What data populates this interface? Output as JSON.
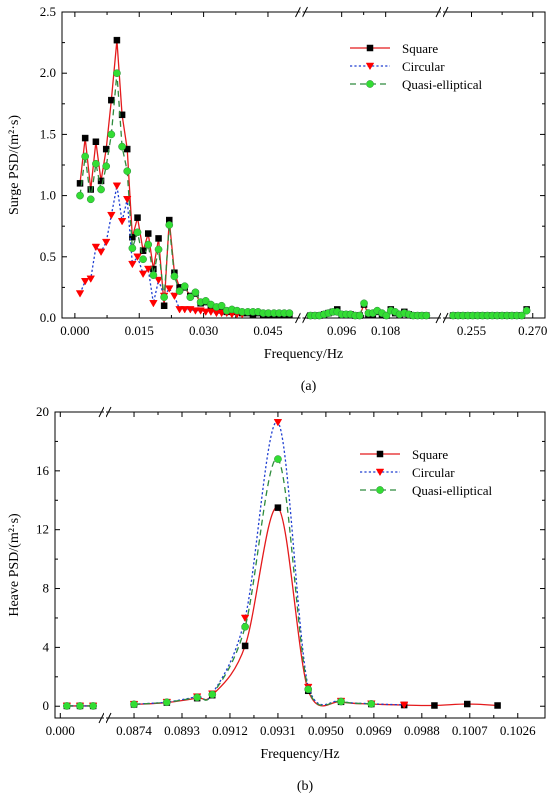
{
  "chart_data": [
    {
      "type": "line",
      "panel_label": "(a)",
      "xlabel": "Frequency/Hz",
      "ylabel": "Surge PSD/(m²·s)",
      "ylim": [
        0,
        2.5
      ],
      "yticks": [
        0.0,
        0.5,
        1.0,
        1.5,
        2.0,
        2.5
      ],
      "ytick_labels": [
        "0.0",
        "0.5",
        "1.0",
        "1.5",
        "2.0",
        "2.5"
      ],
      "axis_break": true,
      "x_segments": [
        {
          "range": [
            -0.003,
            0.052
          ],
          "ticks": [
            0.0,
            0.015,
            0.03,
            0.045
          ],
          "tick_labels": [
            "0.000",
            "0.015",
            "0.030",
            "0.045"
          ]
        },
        {
          "range": [
            0.086,
            0.122
          ],
          "ticks": [
            0.096,
            0.108
          ],
          "tick_labels": [
            "0.096",
            "0.108"
          ]
        },
        {
          "range": [
            0.249,
            0.273
          ],
          "ticks": [
            0.255,
            0.27
          ],
          "tick_labels": [
            "0.255",
            "0.270"
          ]
        }
      ],
      "grid": false,
      "legend_position": "top-right",
      "series": [
        {
          "name": "Square",
          "color": "#e41a1c",
          "line": "solid",
          "marker": "square",
          "marker_fill": "#000000",
          "x": [
            0.0012,
            0.0024,
            0.0037,
            0.0049,
            0.0061,
            0.0073,
            0.0085,
            0.0098,
            0.011,
            0.0122,
            0.0134,
            0.0146,
            0.0159,
            0.0171,
            0.0183,
            0.0195,
            0.0208,
            0.022,
            0.0232,
            0.0244,
            0.0256,
            0.0269,
            0.0281,
            0.0293,
            0.0305,
            0.0317,
            0.033,
            0.0342,
            0.0354,
            0.0366,
            0.0378,
            0.039,
            0.0403,
            0.0415,
            0.0427,
            0.0439,
            0.0451,
            0.0464,
            0.0476,
            0.0488,
            0.05,
            0.0875,
            0.0887,
            0.0899,
            0.0912,
            0.0924,
            0.0936,
            0.0948,
            0.096,
            0.0972,
            0.0984,
            0.0997,
            0.1009,
            0.1021,
            0.1033,
            0.1045,
            0.1057,
            0.107,
            0.1082,
            0.1094,
            0.1106,
            0.1118,
            0.1131,
            0.1143,
            0.1155,
            0.1167,
            0.1179,
            0.1191,
            0.2505,
            0.2517,
            0.2529,
            0.2541,
            0.2553,
            0.2565,
            0.2577,
            0.2589,
            0.2601,
            0.2613,
            0.2625,
            0.2637,
            0.2649,
            0.2661,
            0.2673,
            0.2685
          ],
          "y": [
            1.1,
            1.47,
            1.05,
            1.44,
            1.12,
            1.38,
            1.78,
            2.27,
            1.66,
            1.38,
            0.66,
            0.82,
            0.55,
            0.69,
            0.4,
            0.65,
            0.1,
            0.8,
            0.37,
            0.25,
            0.25,
            0.18,
            0.2,
            0.12,
            0.13,
            0.1,
            0.08,
            0.07,
            0.05,
            0.06,
            0.05,
            0.04,
            0.04,
            0.03,
            0.04,
            0.03,
            0.03,
            0.03,
            0.03,
            0.03,
            0.03,
            0.02,
            0.02,
            0.02,
            0.03,
            0.04,
            0.05,
            0.07,
            0.03,
            0.03,
            0.03,
            0.02,
            0.02,
            0.11,
            0.03,
            0.03,
            0.05,
            0.03,
            0.02,
            0.07,
            0.04,
            0.03,
            0.05,
            0.03,
            0.02,
            0.02,
            0.02,
            0.02,
            0.02,
            0.02,
            0.02,
            0.02,
            0.02,
            0.02,
            0.02,
            0.02,
            0.02,
            0.02,
            0.02,
            0.02,
            0.02,
            0.02,
            0.02,
            0.07
          ]
        },
        {
          "name": "Circular",
          "color": "#1f3fd1",
          "line": "dotted",
          "marker": "triangle-down",
          "marker_fill": "#ff0000",
          "x": [
            0.0012,
            0.0024,
            0.0037,
            0.0049,
            0.0061,
            0.0073,
            0.0085,
            0.0098,
            0.011,
            0.0122,
            0.0134,
            0.0146,
            0.0159,
            0.0171,
            0.0183,
            0.0195,
            0.0208,
            0.022,
            0.0232,
            0.0244,
            0.0256,
            0.0269,
            0.0281,
            0.0293,
            0.0305,
            0.0317,
            0.033,
            0.0342,
            0.0354,
            0.0366,
            0.0378,
            0.039
          ],
          "y": [
            0.2,
            0.3,
            0.32,
            0.58,
            0.54,
            0.62,
            0.84,
            1.08,
            0.79,
            0.97,
            0.44,
            0.5,
            0.36,
            0.4,
            0.12,
            0.31,
            0.18,
            0.24,
            0.18,
            0.07,
            0.07,
            0.07,
            0.06,
            0.06,
            0.05,
            0.05,
            0.04,
            0.04,
            0.04,
            0.03,
            0.03,
            0.03
          ]
        },
        {
          "name": "Quasi-elliptical",
          "color": "#2e8b3d",
          "line": "dashed",
          "marker": "circle",
          "marker_fill": "#33dd33",
          "x": [
            0.0012,
            0.0024,
            0.0037,
            0.0049,
            0.0061,
            0.0073,
            0.0085,
            0.0098,
            0.011,
            0.0122,
            0.0134,
            0.0146,
            0.0159,
            0.0171,
            0.0183,
            0.0195,
            0.0208,
            0.022,
            0.0232,
            0.0244,
            0.0256,
            0.0269,
            0.0281,
            0.0293,
            0.0305,
            0.0317,
            0.033,
            0.0342,
            0.0354,
            0.0366,
            0.0378,
            0.039,
            0.0403,
            0.0415,
            0.0427,
            0.0439,
            0.0451,
            0.0464,
            0.0476,
            0.0488,
            0.05,
            0.0875,
            0.0887,
            0.0899,
            0.0912,
            0.0924,
            0.0936,
            0.0948,
            0.096,
            0.0972,
            0.0984,
            0.0997,
            0.1009,
            0.1021,
            0.1033,
            0.1045,
            0.1057,
            0.107,
            0.1082,
            0.1094,
            0.1106,
            0.1118,
            0.1131,
            0.1143,
            0.1155,
            0.1167,
            0.1179,
            0.1191,
            0.2505,
            0.2517,
            0.2529,
            0.2541,
            0.2553,
            0.2565,
            0.2577,
            0.2589,
            0.2601,
            0.2613,
            0.2625,
            0.2637,
            0.2649,
            0.2661,
            0.2673,
            0.2685
          ],
          "y": [
            1.0,
            1.32,
            0.97,
            1.26,
            1.05,
            1.24,
            1.5,
            2.0,
            1.4,
            1.2,
            0.57,
            0.7,
            0.48,
            0.6,
            0.35,
            0.56,
            0.17,
            0.76,
            0.34,
            0.22,
            0.26,
            0.17,
            0.21,
            0.13,
            0.14,
            0.11,
            0.09,
            0.1,
            0.06,
            0.07,
            0.06,
            0.05,
            0.05,
            0.05,
            0.05,
            0.04,
            0.04,
            0.04,
            0.04,
            0.04,
            0.04,
            0.02,
            0.02,
            0.02,
            0.03,
            0.04,
            0.05,
            0.05,
            0.03,
            0.03,
            0.03,
            0.02,
            0.02,
            0.12,
            0.04,
            0.04,
            0.06,
            0.04,
            0.02,
            0.06,
            0.05,
            0.03,
            0.04,
            0.03,
            0.02,
            0.02,
            0.02,
            0.02,
            0.02,
            0.02,
            0.02,
            0.02,
            0.02,
            0.02,
            0.02,
            0.02,
            0.02,
            0.02,
            0.02,
            0.02,
            0.02,
            0.02,
            0.02,
            0.06
          ]
        }
      ]
    },
    {
      "type": "line",
      "panel_label": "(b)",
      "xlabel": "Frequency/Hz",
      "ylabel": "Heave PSD/(m²·s)",
      "ylim": [
        -0.8,
        20
      ],
      "yticks": [
        0,
        4,
        8,
        12,
        16,
        20
      ],
      "ytick_labels": [
        "0",
        "4",
        "8",
        "12",
        "16",
        "20"
      ],
      "axis_break": true,
      "x_segments": [
        {
          "range": [
            -0.00025,
            0.0034
          ],
          "ticks": [
            0.0
          ],
          "tick_labels": [
            "0.000"
          ]
        },
        {
          "range": [
            0.08625,
            0.1036
          ],
          "ticks": [
            0.0874,
            0.0893,
            0.0912,
            0.0931,
            0.095,
            0.0969,
            0.0988,
            0.1007,
            0.1026
          ],
          "tick_labels": [
            "0.0874",
            "0.0893",
            "0.0912",
            "0.0931",
            "0.0950",
            "0.0969",
            "0.0988",
            "0.1007",
            "0.1026"
          ]
        }
      ],
      "grid": false,
      "legend_position": "top-right",
      "series": [
        {
          "name": "Square",
          "color": "#e41a1c",
          "line": "solid",
          "marker": "square",
          "marker_fill": "#000000",
          "x": [
            0.0005,
            0.0015,
            0.0025,
            0.0874,
            0.0887,
            0.0899,
            0.0905,
            0.0918,
            0.0931,
            0.0943,
            0.0956,
            0.0968,
            0.0981,
            0.0993,
            0.1006,
            0.1018
          ],
          "y": [
            0.02,
            0.02,
            0.02,
            0.12,
            0.25,
            0.55,
            0.75,
            4.1,
            13.5,
            1.05,
            0.3,
            0.15,
            0.08,
            0.05,
            0.15,
            0.05
          ]
        },
        {
          "name": "Circular",
          "color": "#1f3fd1",
          "line": "dotted",
          "marker": "triangle-down",
          "marker_fill": "#ff0000",
          "x": [
            0.0005,
            0.0015,
            0.0025,
            0.0874,
            0.0887,
            0.0899,
            0.0905,
            0.0918,
            0.0931,
            0.0943,
            0.0956,
            0.0968,
            0.0981
          ],
          "y": [
            0.02,
            0.02,
            0.02,
            0.14,
            0.28,
            0.65,
            0.85,
            6.0,
            19.3,
            1.3,
            0.35,
            0.17,
            0.09
          ]
        },
        {
          "name": "Quasi-elliptical",
          "color": "#2e8b3d",
          "line": "dashed",
          "marker": "circle",
          "marker_fill": "#33dd33",
          "x": [
            0.0005,
            0.0015,
            0.0025,
            0.0874,
            0.0887,
            0.0899,
            0.0905,
            0.0918,
            0.0931,
            0.0943,
            0.0956,
            0.0968
          ],
          "y": [
            0.02,
            0.02,
            0.02,
            0.13,
            0.27,
            0.6,
            0.8,
            5.4,
            16.8,
            1.15,
            0.32,
            0.16
          ]
        }
      ]
    }
  ]
}
